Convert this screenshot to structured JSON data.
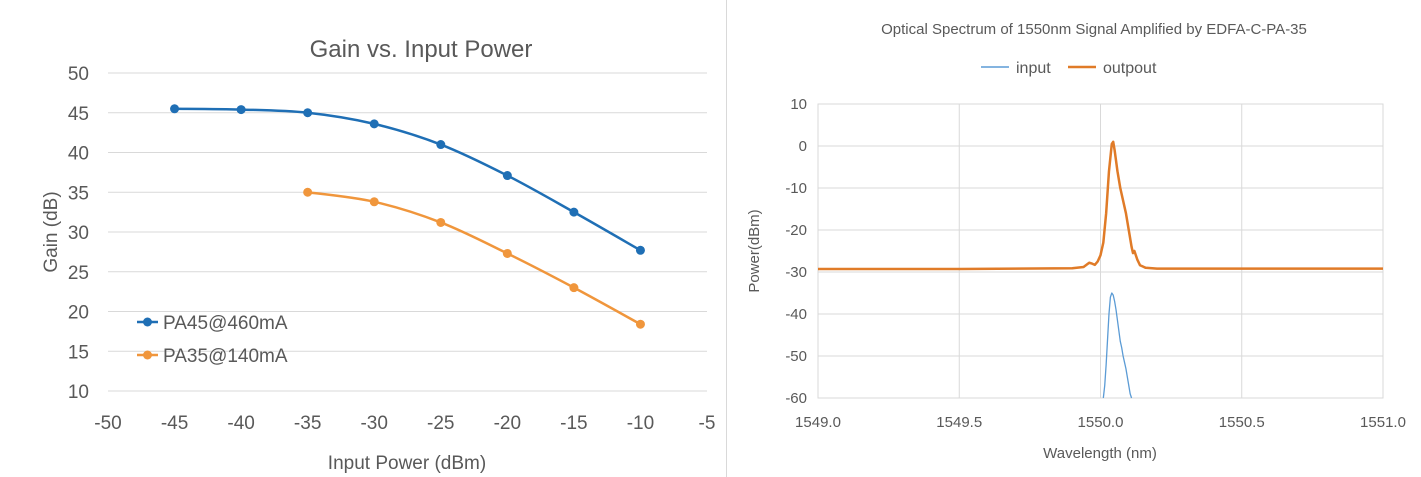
{
  "chart_data": [
    {
      "type": "line",
      "title": "Gain vs. Input Power",
      "xlabel": "Input Power (dBm)",
      "ylabel": "Gain (dB)",
      "xlim": [
        -50,
        -5
      ],
      "ylim": [
        10,
        50
      ],
      "x_ticks": [
        "-50",
        "-45",
        "-40",
        "-35",
        "-30",
        "-25",
        "-20",
        "-15",
        "-10",
        "-5"
      ],
      "y_ticks": [
        "10",
        "15",
        "20",
        "25",
        "30",
        "35",
        "40",
        "45",
        "50"
      ],
      "grid": "horizontal",
      "legend_position": "bottom-left",
      "series": [
        {
          "name": "PA45@460mA",
          "color": "#1f6fb5",
          "x": [
            -45,
            -40,
            -35,
            -30,
            -25,
            -20,
            -15,
            -10
          ],
          "y": [
            45.5,
            45.4,
            45.0,
            43.6,
            41.0,
            37.1,
            32.5,
            27.7
          ]
        },
        {
          "name": "PA35@140mA",
          "color": "#f0963c",
          "x": [
            -35,
            -30,
            -25,
            -20,
            -15,
            -10
          ],
          "y": [
            35.0,
            33.8,
            31.2,
            27.3,
            23.0,
            18.4
          ]
        }
      ]
    },
    {
      "type": "line",
      "title": "Optical Spectrum of 1550nm Signal Amplified by EDFA-C-PA-35",
      "xlabel": "Wavelength (nm)",
      "ylabel": "Power(dBm)",
      "xlim": [
        1549.0,
        1551.0
      ],
      "ylim": [
        -60,
        10
      ],
      "x_ticks": [
        "1549.0",
        "1549.5",
        "1550.0",
        "1550.5",
        "1551.0"
      ],
      "y_ticks": [
        "10",
        "0",
        "-10",
        "-20",
        "-30",
        "-40",
        "-50",
        "-60"
      ],
      "grid": "both",
      "legend_position": "top",
      "series": [
        {
          "name": "input",
          "color": "#5b9bd5",
          "x": [
            1550.01,
            1550.015,
            1550.02,
            1550.025,
            1550.03,
            1550.035,
            1550.04,
            1550.045,
            1550.05,
            1550.055,
            1550.06,
            1550.065,
            1550.07,
            1550.075,
            1550.08,
            1550.085,
            1550.09,
            1550.095,
            1550.1,
            1550.105,
            1550.11
          ],
          "y": [
            -60,
            -57,
            -52,
            -46,
            -40,
            -36,
            -35,
            -35.5,
            -37,
            -39,
            -41.5,
            -44,
            -46.5,
            -48,
            -50,
            -51.5,
            -53,
            -55,
            -57,
            -59,
            -60
          ]
        },
        {
          "name": "outpout",
          "color": "#e07b28",
          "x": [
            1549.0,
            1549.5,
            1549.9,
            1549.94,
            1549.96,
            1549.97,
            1549.98,
            1549.99,
            1550.0,
            1550.01,
            1550.02,
            1550.03,
            1550.04,
            1550.045,
            1550.05,
            1550.06,
            1550.07,
            1550.08,
            1550.09,
            1550.1,
            1550.11,
            1550.115,
            1550.12,
            1550.13,
            1550.14,
            1550.16,
            1550.2,
            1550.5,
            1551.0
          ],
          "y": [
            -29.3,
            -29.3,
            -29.1,
            -28.8,
            -27.8,
            -28.0,
            -28.3,
            -27.5,
            -26.0,
            -23.0,
            -16.0,
            -6.0,
            0.5,
            1.0,
            -1.0,
            -6.0,
            -10.0,
            -13.0,
            -16.0,
            -20.0,
            -24.0,
            -25.5,
            -25.0,
            -27.0,
            -28.4,
            -29.0,
            -29.2,
            -29.2,
            -29.2
          ]
        }
      ]
    }
  ]
}
